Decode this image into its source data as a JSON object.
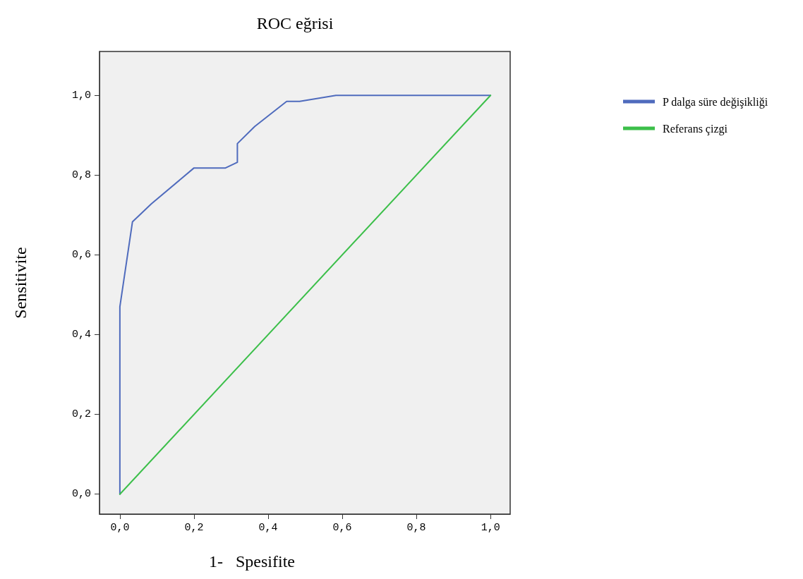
{
  "chart_data": {
    "type": "line",
    "title": "ROC eğrisi",
    "xlabel": "1-   Spesifite",
    "ylabel": "Sensitivite",
    "xlim": [
      -0.055,
      1.053
    ],
    "ylim": [
      -0.05,
      1.11
    ],
    "xticks": [
      {
        "value": 0,
        "label": "0,0"
      },
      {
        "value": 0.2,
        "label": "0,2"
      },
      {
        "value": 0.4,
        "label": "0,4"
      },
      {
        "value": 0.6,
        "label": "0,6"
      },
      {
        "value": 0.8,
        "label": "0,8"
      },
      {
        "value": 1,
        "label": "1,0"
      }
    ],
    "yticks": [
      {
        "value": 0,
        "label": "0,0"
      },
      {
        "value": 0.2,
        "label": "0,2"
      },
      {
        "value": 0.4,
        "label": "0,4"
      },
      {
        "value": 0.6,
        "label": "0,6"
      },
      {
        "value": 0.8,
        "label": "0,8"
      },
      {
        "value": 1,
        "label": "1,0"
      }
    ],
    "grid": false,
    "legend": "top right",
    "marker": "none",
    "line_style": "solid",
    "series": [
      {
        "name": "P dalga süre değişikliği",
        "color": "#4f6bbd",
        "x": [
          0,
          0,
          0.034,
          0.085,
          0.2,
          0.285,
          0.317,
          0.317,
          0.364,
          0.45,
          0.485,
          0.583,
          1
        ],
        "values": [
          0,
          0.47,
          0.683,
          0.728,
          0.818,
          0.818,
          0.832,
          0.879,
          0.922,
          0.985,
          0.985,
          1,
          1
        ]
      },
      {
        "name": "Referans çizgi",
        "color": "#3cbf4a",
        "x": [
          0,
          1
        ],
        "values": [
          0,
          1
        ]
      }
    ]
  }
}
